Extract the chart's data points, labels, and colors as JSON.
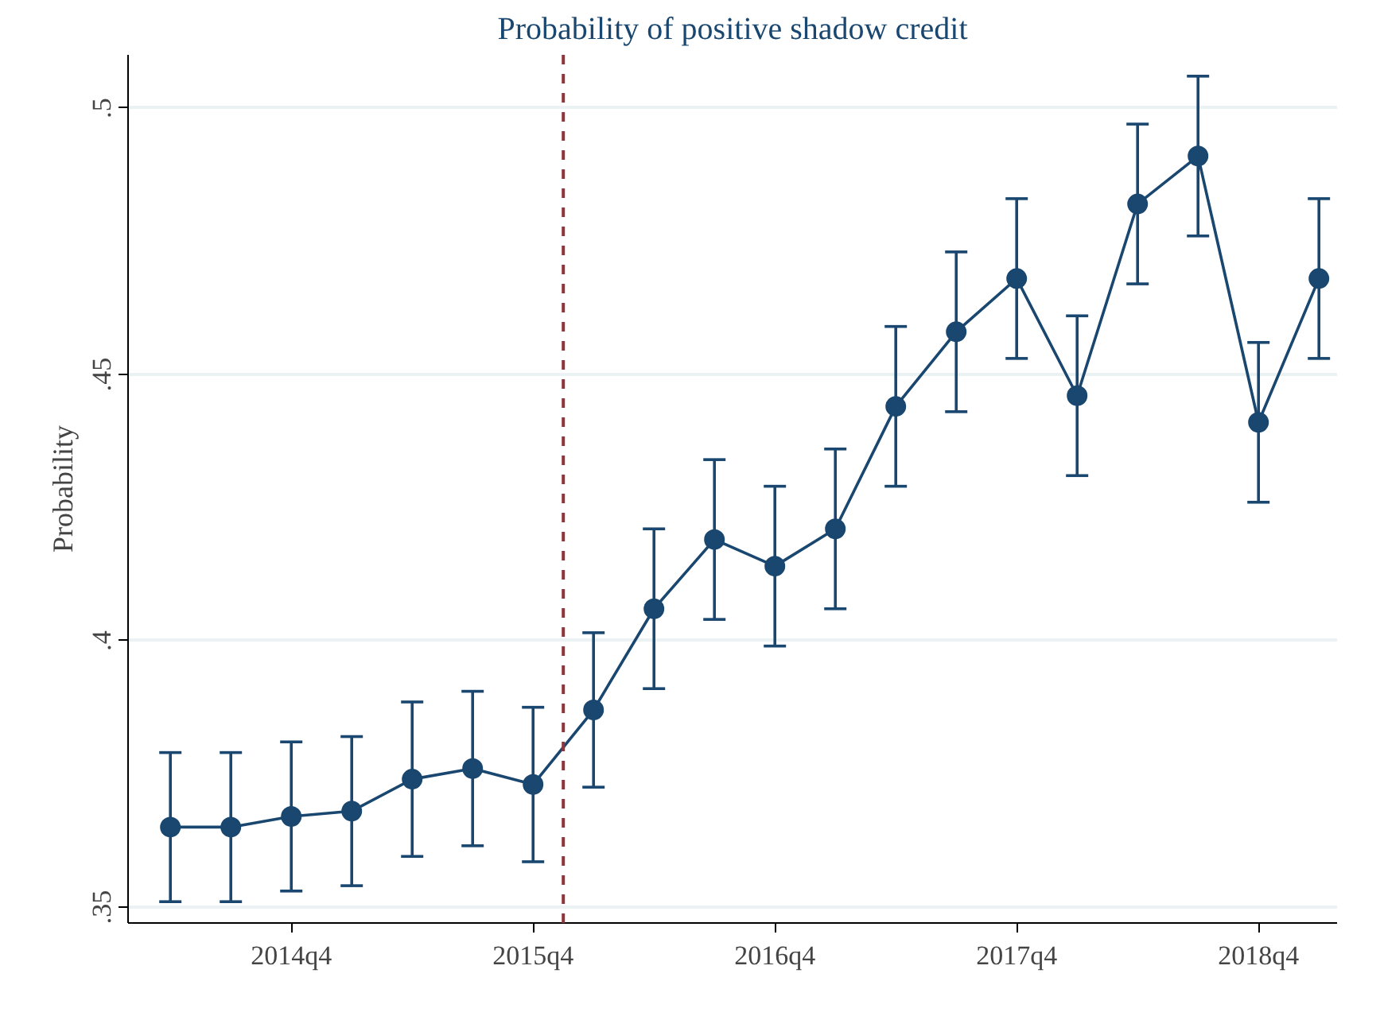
{
  "chart_data": {
    "type": "line",
    "title": "Probability of positive shadow credit",
    "ylabel": "Probability",
    "categories": [
      null,
      null,
      "2014q4",
      null,
      null,
      null,
      "2015q4",
      null,
      null,
      null,
      "2016q4",
      null,
      null,
      null,
      "2017q4",
      null,
      null,
      null,
      "2018q4",
      null
    ],
    "series": [
      {
        "color": "#1a476f",
        "values": [
          0.365,
          0.365,
          0.367,
          0.368,
          0.374,
          0.376,
          0.373,
          0.387,
          0.406,
          0.419,
          0.414,
          0.421,
          0.444,
          0.458,
          0.468,
          0.446,
          0.482,
          0.491,
          0.441,
          0.468
        ],
        "errors": [
          0.014,
          0.014,
          0.014,
          0.014,
          0.0145,
          0.0145,
          0.0145,
          0.0145,
          0.015,
          0.015,
          0.015,
          0.015,
          0.015,
          0.015,
          0.015,
          0.015,
          0.015,
          0.015,
          0.015,
          0.015
        ]
      }
    ],
    "ylim": [
      0.347,
      0.51
    ],
    "yticks": [
      {
        "value": 0.35,
        "label": ".35"
      },
      {
        "value": 0.4,
        "label": ".4"
      },
      {
        "value": 0.45,
        "label": ".45"
      },
      {
        "value": 0.5,
        "label": ".5"
      }
    ],
    "grid": "y",
    "marker": "circle",
    "line_style": "solid"
  }
}
